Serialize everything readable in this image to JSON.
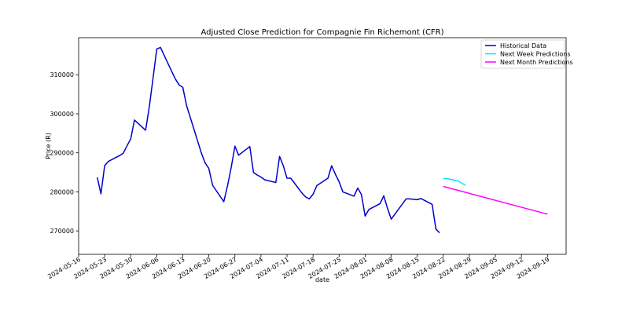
{
  "chart_data": {
    "type": "line",
    "title": "Adjusted Close Prediction for Compagnie Fin Richemont (CFR)",
    "xlabel": "date",
    "ylabel": "Price (R)",
    "grid": false,
    "legend_position": "top-right",
    "x_ticks": [
      "2024-05-16",
      "2024-05-23",
      "2024-05-30",
      "2024-06-06",
      "2024-06-13",
      "2024-06-20",
      "2024-06-27",
      "2024-07-04",
      "2024-07-11",
      "2024-07-18",
      "2024-07-25",
      "2024-08-01",
      "2024-08-08",
      "2024-08-15",
      "2024-08-22",
      "2024-08-29",
      "2024-09-05",
      "2024-09-12",
      "2024-09-19"
    ],
    "y_ticks": [
      270000,
      280000,
      290000,
      300000,
      310000
    ],
    "y_tick_labels": [
      "270000",
      "280000",
      "290000",
      "300000",
      "310000"
    ],
    "xlim": [
      "2024-05-16",
      "2024-09-24"
    ],
    "ylim": [
      264000,
      319500
    ],
    "series": [
      {
        "name": "Historical Data",
        "color": "#0000cc",
        "x": [
          "2024-05-21",
          "2024-05-22",
          "2024-05-23",
          "2024-05-24",
          "2024-05-27",
          "2024-05-28",
          "2024-05-29",
          "2024-05-30",
          "2024-05-31",
          "2024-06-03",
          "2024-06-04",
          "2024-06-05",
          "2024-06-06",
          "2024-06-07",
          "2024-06-10",
          "2024-06-11",
          "2024-06-12",
          "2024-06-13",
          "2024-06-14",
          "2024-06-18",
          "2024-06-19",
          "2024-06-20",
          "2024-06-21",
          "2024-06-24",
          "2024-06-25",
          "2024-06-26",
          "2024-06-27",
          "2024-06-28",
          "2024-07-01",
          "2024-07-02",
          "2024-07-03",
          "2024-07-04",
          "2024-07-05",
          "2024-07-08",
          "2024-07-09",
          "2024-07-10",
          "2024-07-11",
          "2024-07-12",
          "2024-07-15",
          "2024-07-16",
          "2024-07-17",
          "2024-07-18",
          "2024-07-19",
          "2024-07-22",
          "2024-07-23",
          "2024-07-24",
          "2024-07-25",
          "2024-07-26",
          "2024-07-29",
          "2024-07-30",
          "2024-07-31",
          "2024-08-01",
          "2024-08-02",
          "2024-08-05",
          "2024-08-06",
          "2024-08-07",
          "2024-08-08",
          "2024-08-12",
          "2024-08-13",
          "2024-08-14",
          "2024-08-15",
          "2024-08-16",
          "2024-08-19",
          "2024-08-20",
          "2024-08-21"
        ],
        "y": [
          283700,
          279500,
          286700,
          287800,
          289300,
          289900,
          291800,
          293600,
          298400,
          295800,
          301800,
          309200,
          316600,
          317000,
          310900,
          308900,
          307400,
          306800,
          302100,
          289900,
          287400,
          286000,
          281700,
          277500,
          281500,
          286200,
          291700,
          289400,
          291600,
          285000,
          284300,
          283800,
          283100,
          282400,
          289100,
          286700,
          283500,
          283500,
          279700,
          278700,
          278200,
          279400,
          281600,
          283500,
          286700,
          284500,
          282600,
          280000,
          278900,
          281000,
          279300,
          273800,
          275500,
          277000,
          279000,
          275800,
          273000,
          278200,
          278200,
          278100,
          278000,
          278300,
          276800,
          270500,
          269500
        ]
      },
      {
        "name": "Next Week Predictions",
        "color": "#00e5ff",
        "x": [
          "2024-08-22",
          "2024-08-23",
          "2024-08-26",
          "2024-08-27",
          "2024-08-28"
        ],
        "y": [
          283400,
          283400,
          282800,
          282200,
          281700
        ]
      },
      {
        "name": "Next Month Predictions",
        "color": "#ff00ff",
        "x": [
          "2024-08-22",
          "2024-09-19"
        ],
        "y": [
          281400,
          274300
        ]
      }
    ]
  }
}
